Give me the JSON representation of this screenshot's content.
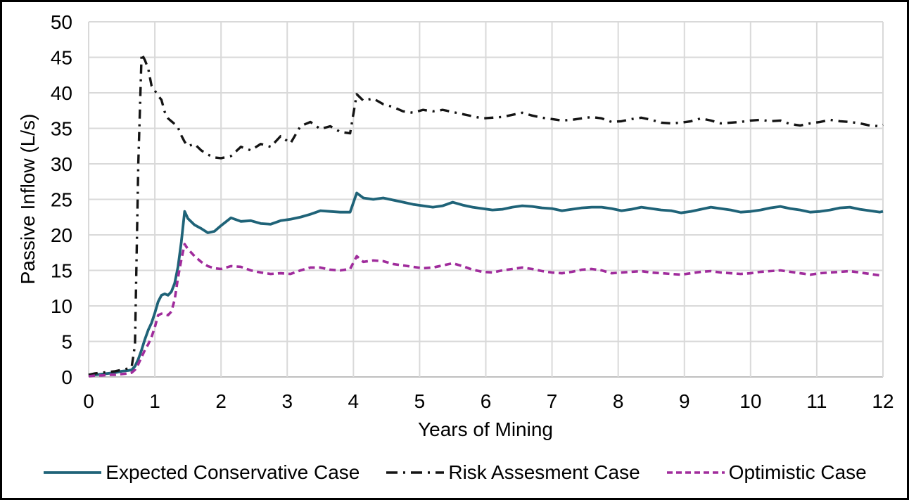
{
  "chart_data": {
    "type": "line",
    "title": "",
    "xlabel": "Years of Mining",
    "ylabel": "Passive Inflow (L/s)",
    "xlim": [
      0,
      12
    ],
    "ylim": [
      0,
      50
    ],
    "x_ticks": [
      0,
      1,
      2,
      3,
      4,
      5,
      6,
      7,
      8,
      9,
      10,
      11,
      12
    ],
    "y_ticks": [
      0,
      5,
      10,
      15,
      20,
      25,
      30,
      35,
      40,
      45,
      50
    ],
    "grid": true,
    "legend_position": "bottom",
    "colors": {
      "grid": "#d9d9d9",
      "axis": "#bfbfbf",
      "text": "#000000",
      "background": "#ffffff",
      "border": "#000000"
    },
    "x": [
      0,
      0.1,
      0.2,
      0.3,
      0.4,
      0.5,
      0.6,
      0.65,
      0.7,
      0.75,
      0.8,
      0.85,
      0.9,
      0.95,
      1,
      1.05,
      1.1,
      1.15,
      1.2,
      1.25,
      1.3,
      1.35,
      1.4,
      1.45,
      1.5,
      1.6,
      1.7,
      1.8,
      1.9,
      2,
      2.15,
      2.3,
      2.45,
      2.6,
      2.75,
      2.9,
      3.05,
      3.2,
      3.35,
      3.5,
      3.65,
      3.8,
      3.95,
      4.05,
      4.15,
      4.3,
      4.45,
      4.6,
      4.75,
      4.9,
      5.05,
      5.2,
      5.35,
      5.5,
      5.65,
      5.8,
      5.95,
      6.1,
      6.25,
      6.4,
      6.55,
      6.7,
      6.85,
      7,
      7.15,
      7.3,
      7.45,
      7.6,
      7.75,
      7.9,
      8.05,
      8.2,
      8.35,
      8.5,
      8.65,
      8.8,
      8.95,
      9.1,
      9.25,
      9.4,
      9.55,
      9.7,
      9.85,
      10,
      10.15,
      10.3,
      10.45,
      10.6,
      10.75,
      10.9,
      11.05,
      11.2,
      11.35,
      11.5,
      11.65,
      11.8,
      11.95,
      12
    ],
    "series": [
      {
        "name": "Expected Conservative Case",
        "color": "#1f6378",
        "line_style": "solid",
        "line_width": 3.8,
        "values": [
          0.2,
          0.3,
          0.4,
          0.5,
          0.6,
          0.8,
          0.9,
          1.0,
          1.5,
          2.5,
          3.8,
          5.3,
          6.6,
          7.6,
          9.0,
          10.6,
          11.5,
          11.7,
          11.5,
          12.0,
          13.2,
          15.5,
          19.0,
          23.3,
          22.3,
          21.4,
          20.9,
          20.3,
          20.5,
          21.3,
          22.4,
          21.9,
          22.0,
          21.6,
          21.5,
          22.0,
          22.2,
          22.5,
          22.9,
          23.4,
          23.3,
          23.2,
          23.2,
          25.9,
          25.2,
          25.0,
          25.2,
          24.9,
          24.6,
          24.3,
          24.1,
          23.9,
          24.1,
          24.6,
          24.2,
          23.9,
          23.7,
          23.5,
          23.6,
          23.9,
          24.1,
          24.0,
          23.8,
          23.7,
          23.4,
          23.6,
          23.8,
          23.9,
          23.9,
          23.7,
          23.4,
          23.6,
          23.9,
          23.7,
          23.5,
          23.4,
          23.1,
          23.3,
          23.6,
          23.9,
          23.7,
          23.5,
          23.2,
          23.3,
          23.5,
          23.8,
          24.0,
          23.7,
          23.5,
          23.2,
          23.3,
          23.5,
          23.8,
          23.9,
          23.6,
          23.4,
          23.2,
          23.3
        ]
      },
      {
        "name": "Risk Assesment Case",
        "color": "#141414",
        "line_style": "dash-dot",
        "line_width": 3.4,
        "values": [
          0.3,
          0.5,
          0.6,
          0.7,
          0.8,
          1.0,
          1.2,
          1.4,
          4.5,
          30.0,
          45.5,
          44.6,
          43.4,
          41.0,
          40.3,
          39.6,
          39.0,
          37.3,
          36.4,
          36.0,
          35.6,
          35.1,
          34.0,
          33.1,
          32.5,
          32.8,
          31.9,
          31.3,
          30.9,
          30.8,
          31.1,
          32.4,
          31.9,
          32.8,
          32.4,
          33.9,
          32.9,
          35.3,
          35.9,
          34.9,
          35.3,
          34.5,
          34.3,
          39.8,
          38.9,
          39.2,
          38.4,
          38.0,
          37.4,
          37.2,
          37.6,
          37.4,
          37.6,
          37.3,
          37.0,
          36.7,
          36.4,
          36.5,
          36.6,
          36.9,
          37.2,
          36.8,
          36.5,
          36.3,
          36.1,
          36.2,
          36.4,
          36.6,
          36.4,
          35.9,
          36.0,
          36.3,
          36.5,
          36.2,
          35.8,
          35.7,
          35.8,
          36.0,
          36.4,
          36.1,
          35.7,
          35.8,
          35.9,
          36.1,
          36.2,
          36.0,
          36.1,
          35.6,
          35.4,
          35.7,
          35.9,
          36.2,
          36.0,
          35.9,
          35.7,
          35.4,
          35.3,
          35.5
        ]
      },
      {
        "name": "Optimistic Case",
        "color": "#a02c9c",
        "line_style": "dashed",
        "line_width": 3.6,
        "values": [
          0.1,
          0.2,
          0.2,
          0.3,
          0.3,
          0.4,
          0.5,
          0.6,
          1.0,
          1.8,
          2.8,
          3.8,
          4.6,
          5.6,
          7.0,
          8.7,
          8.9,
          8.8,
          8.7,
          9.2,
          10.9,
          14.0,
          16.5,
          18.7,
          18.0,
          17.0,
          16.2,
          15.6,
          15.3,
          15.2,
          15.6,
          15.5,
          15.0,
          14.7,
          14.5,
          14.6,
          14.5,
          15.0,
          15.4,
          15.4,
          15.1,
          15.0,
          15.2,
          17.0,
          16.2,
          16.4,
          16.3,
          15.9,
          15.7,
          15.5,
          15.3,
          15.4,
          15.7,
          16.0,
          15.6,
          15.1,
          14.8,
          14.7,
          15.0,
          15.2,
          15.4,
          15.2,
          14.9,
          14.7,
          14.6,
          14.8,
          15.1,
          15.2,
          15.0,
          14.6,
          14.7,
          14.8,
          14.9,
          14.7,
          14.6,
          14.5,
          14.4,
          14.6,
          14.8,
          14.9,
          14.7,
          14.6,
          14.5,
          14.6,
          14.8,
          14.9,
          15.0,
          14.8,
          14.6,
          14.4,
          14.6,
          14.7,
          14.8,
          14.9,
          14.7,
          14.5,
          14.3,
          14.5
        ]
      }
    ]
  }
}
